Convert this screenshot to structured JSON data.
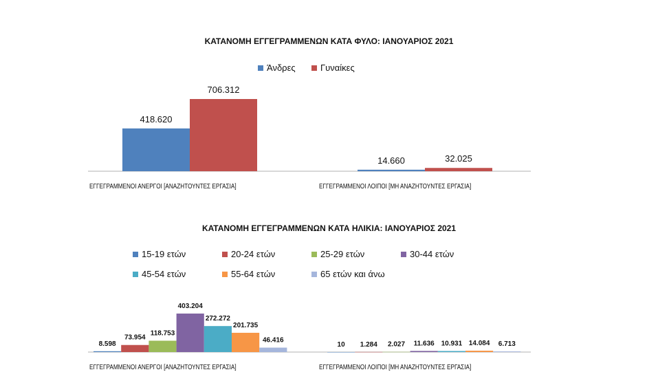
{
  "chart_data": [
    {
      "type": "bar",
      "title": "ΚΑΤΑΝΟΜΗ ΕΓΓΕΓΡΑΜΜΕΝΩΝ ΚΑΤΑ ΦΥΛΟ: ΙΑΝΟΥΑΡΙΟΣ  2021",
      "categories": [
        "ΕΓΓΕΓΡΑΜΜΕΝΟΙ ΑΝΕΡΓΟΙ [ΑΝΑΖΗΤΟΥΝΤΕΣ ΕΡΓΑΣΙΑ]",
        "ΕΓΓΕΓΡΑΜΜΕΝΟΙ ΛΟΙΠΟΙ [ΜΗ ΑΝΑΖΗΤΟΥΝΤΕΣ ΕΡΓΑΣΙΑ]"
      ],
      "series": [
        {
          "name": "Άνδρες",
          "color": "#4f81bd",
          "values": [
            418620,
            14660
          ],
          "labels": [
            "418.620",
            "14.660"
          ]
        },
        {
          "name": "Γυναίκες",
          "color": "#c0504d",
          "values": [
            706312,
            32025
          ],
          "labels": [
            "706.312",
            "32.025"
          ]
        }
      ],
      "ylim": [
        0,
        706312
      ],
      "legend": "top"
    },
    {
      "type": "bar",
      "title": "ΚΑΤΑΝΟΜΗ ΕΓΓΕΓΡΑΜΜΕΝΩΝ ΚΑΤΑ ΗΛΙΚΙΑ: ΙΑΝΟΥΑΡΙΟΣ 2021",
      "categories": [
        "ΕΓΓΕΓΡΑΜΜΕΝΟΙ ΑΝΕΡΓΟΙ [ΑΝΑΖΗΤΟΥΝΤΕΣ ΕΡΓΑΣΙΑ]",
        "ΕΓΓΕΓΡΑΜΜΕΝΟΙ ΛΟΙΠΟΙ [ΜΗ ΑΝΑΖΗΤΟΥΝΤΕΣ ΕΡΓΑΣΙΑ]"
      ],
      "series": [
        {
          "name": "15-19 ετών",
          "color": "#4f81bd",
          "values": [
            8598,
            10
          ],
          "labels": [
            "8.598",
            "10"
          ]
        },
        {
          "name": "20-24 ετών",
          "color": "#c0504d",
          "values": [
            73954,
            1284
          ],
          "labels": [
            "73.954",
            "1.284"
          ]
        },
        {
          "name": "25-29 ετών",
          "color": "#9bbb59",
          "values": [
            118753,
            2027
          ],
          "labels": [
            "118.753",
            "2.027"
          ]
        },
        {
          "name": "30-44 ετών",
          "color": "#8064a2",
          "values": [
            403204,
            11636
          ],
          "labels": [
            "403.204",
            "11.636"
          ]
        },
        {
          "name": "45-54 ετών",
          "color": "#4bacc6",
          "values": [
            272272,
            10931
          ],
          "labels": [
            "272.272",
            "10.931"
          ]
        },
        {
          "name": "55-64 ετών",
          "color": "#f79646",
          "values": [
            201735,
            14084
          ],
          "labels": [
            "201.735",
            "14.084"
          ]
        },
        {
          "name": "65 ετών και άνω",
          "color": "#a5b6dc",
          "values": [
            46416,
            6713
          ],
          "labels": [
            "46.416",
            "6.713"
          ]
        }
      ],
      "ylim": [
        0,
        403204
      ],
      "legend": "top"
    }
  ]
}
